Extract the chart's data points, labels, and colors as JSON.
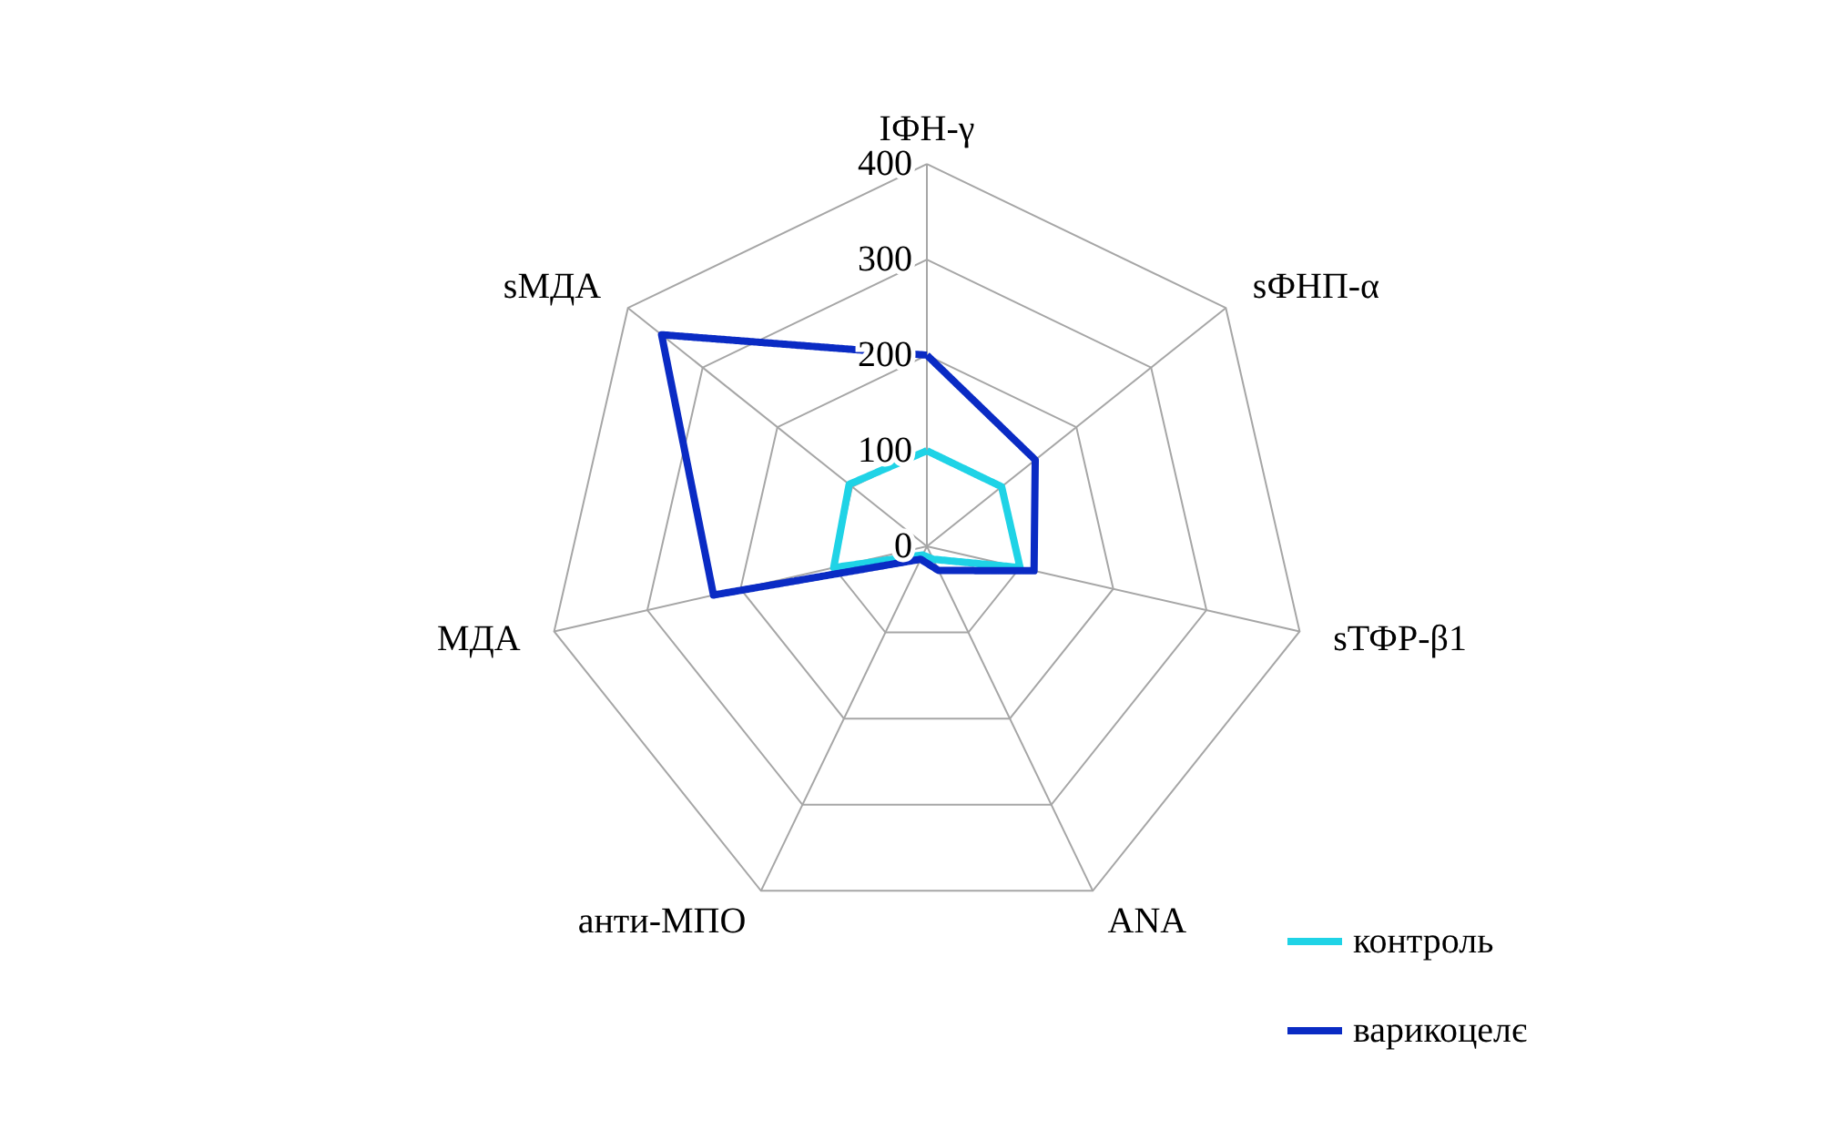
{
  "chart_data": {
    "type": "radar",
    "categories": [
      "IФН-γ",
      "sФНП-α",
      "sТФР-β1",
      "ANA",
      "анти-МПО",
      "МДА",
      "sМДА"
    ],
    "series": [
      {
        "name": "контроль",
        "color": "#1fd3e6",
        "values": [
          100,
          100,
          100,
          15,
          10,
          100,
          104
        ]
      },
      {
        "name": "варикоцелє",
        "color": "#0a2bc4",
        "values": [
          200,
          145,
          115,
          28,
          15,
          229,
          355
        ]
      }
    ],
    "ylim": [
      0,
      400
    ],
    "yticks": [
      0,
      100,
      200,
      300,
      400
    ],
    "grid": true,
    "legend": "bottom right",
    "line_style": "solid",
    "marker": "none"
  }
}
